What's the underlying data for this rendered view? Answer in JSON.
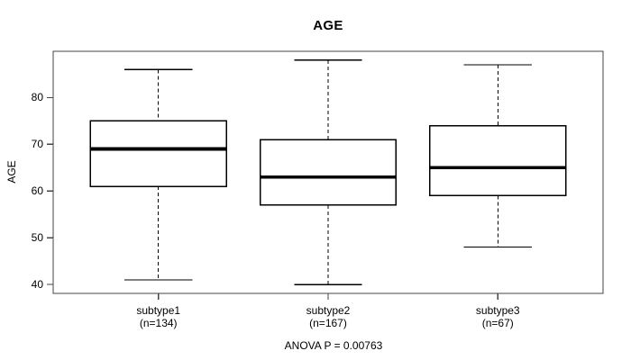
{
  "chart_data": {
    "type": "boxplot",
    "title": "AGE",
    "ylabel": "AGE",
    "annotation": "ANOVA P = 0.00763",
    "yticks": [
      40,
      50,
      60,
      70,
      80
    ],
    "ylim": [
      38.1,
      89.9
    ],
    "xlim": [
      0.38,
      3.62
    ],
    "box_width_units": 0.8,
    "line_color": "#000000",
    "frame_color": "#444444",
    "background": "#ffffff",
    "groups": [
      {
        "label": "subtype1",
        "count_label": "(n=134)",
        "n": 134,
        "position": 1,
        "whisker_low": 41,
        "q1": 61,
        "median": 69,
        "q3": 75,
        "whisker_high": 86
      },
      {
        "label": "subtype2",
        "count_label": "(n=167)",
        "n": 167,
        "position": 2,
        "whisker_low": 40,
        "q1": 57,
        "median": 63,
        "q3": 71,
        "whisker_high": 88
      },
      {
        "label": "subtype3",
        "count_label": "(n=67)",
        "n": 67,
        "position": 3,
        "whisker_low": 48,
        "q1": 59,
        "median": 65,
        "q3": 74,
        "whisker_high": 87
      }
    ]
  }
}
